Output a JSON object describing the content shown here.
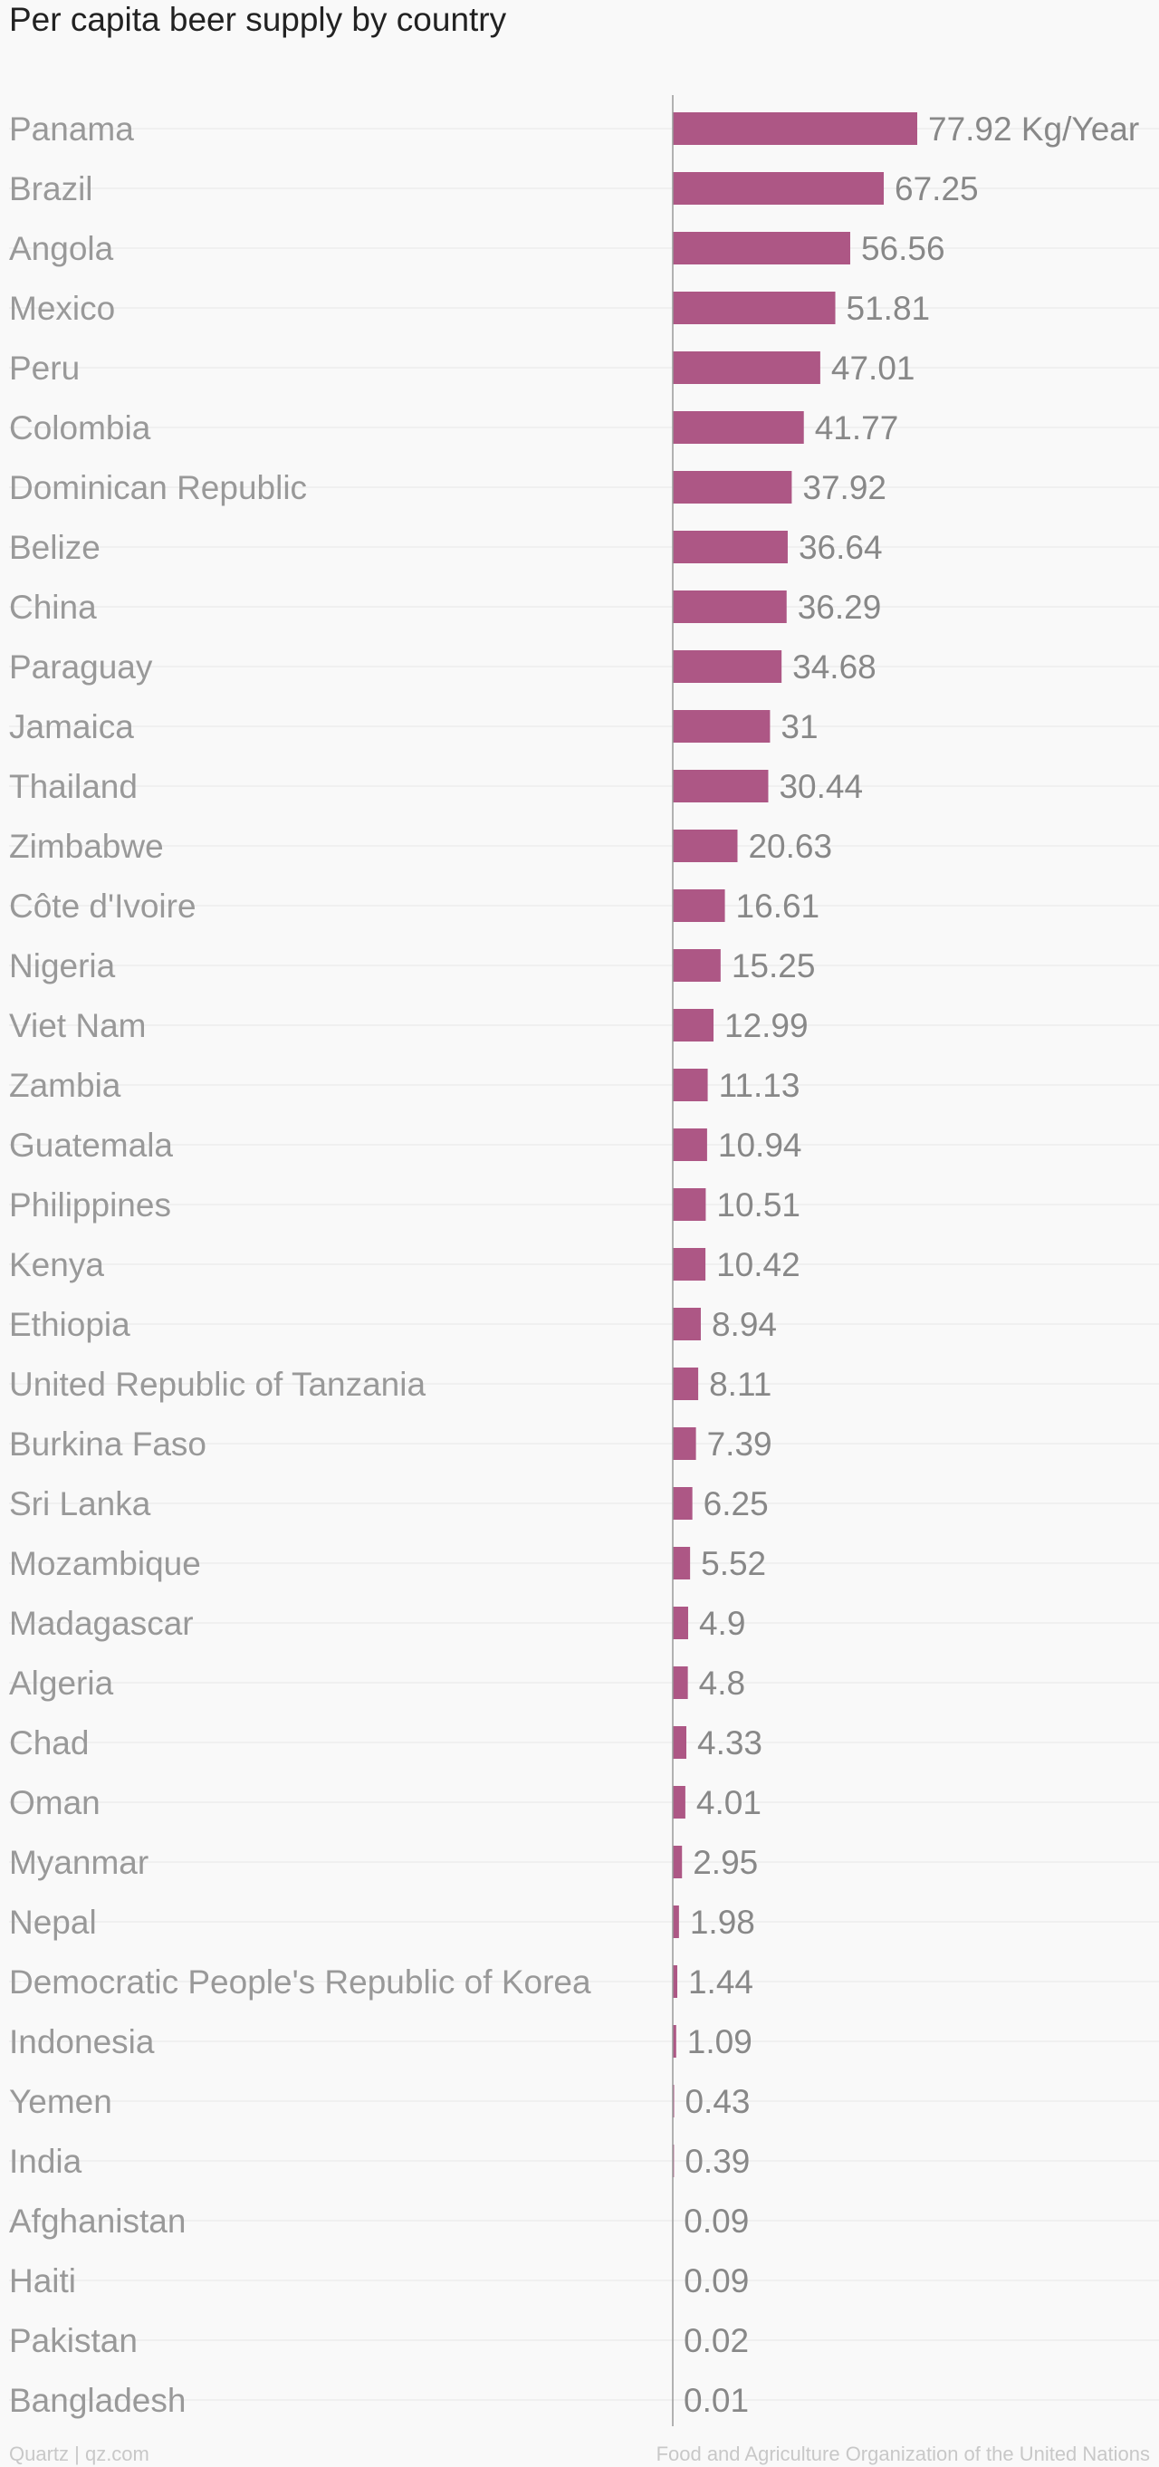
{
  "title": "Per capita beer supply by country",
  "footer": {
    "credit": "Quartz | qz.com",
    "source": "Food and Agriculture Organization of the United Nations"
  },
  "colors": {
    "bar": "#ad5785",
    "category_label": "#999999",
    "value_label": "#888888",
    "gridline": "#e6e6e6",
    "axis": "#999999",
    "background": "#f9f9f9"
  },
  "chart_data": {
    "type": "bar",
    "orientation": "horizontal",
    "categories": [
      "Panama",
      "Brazil",
      "Angola",
      "Mexico",
      "Peru",
      "Colombia",
      "Dominican Republic",
      "Belize",
      "China",
      "Paraguay",
      "Jamaica",
      "Thailand",
      "Zimbabwe",
      "Côte d'Ivoire",
      "Nigeria",
      "Viet Nam",
      "Zambia",
      "Guatemala",
      "Philippines",
      "Kenya",
      "Ethiopia",
      "United Republic of Tanzania",
      "Burkina Faso",
      "Sri Lanka",
      "Mozambique",
      "Madagascar",
      "Algeria",
      "Chad",
      "Oman",
      "Myanmar",
      "Nepal",
      "Democratic People's Republic of Korea",
      "Indonesia",
      "Yemen",
      "India",
      "Afghanistan",
      "Haiti",
      "Pakistan",
      "Bangladesh"
    ],
    "values": [
      77.92,
      67.25,
      56.56,
      51.81,
      47.01,
      41.77,
      37.92,
      36.64,
      36.29,
      34.68,
      31,
      30.44,
      20.63,
      16.61,
      15.25,
      12.99,
      11.13,
      10.94,
      10.51,
      10.42,
      8.94,
      8.11,
      7.39,
      6.25,
      5.52,
      4.9,
      4.8,
      4.33,
      4.01,
      2.95,
      1.98,
      1.44,
      1.09,
      0.43,
      0.39,
      0.09,
      0.09,
      0.02,
      0.01
    ],
    "value_labels": [
      "77.92 Kg/Year",
      "67.25",
      "56.56",
      "51.81",
      "47.01",
      "41.77",
      "37.92",
      "36.64",
      "36.29",
      "34.68",
      "31",
      "30.44",
      "20.63",
      "16.61",
      "15.25",
      "12.99",
      "11.13",
      "10.94",
      "10.51",
      "10.42",
      "8.94",
      "8.11",
      "7.39",
      "6.25",
      "5.52",
      "4.9",
      "4.8",
      "4.33",
      "4.01",
      "2.95",
      "1.98",
      "1.44",
      "1.09",
      "0.43",
      "0.39",
      "0.09",
      "0.09",
      "0.02",
      "0.01"
    ],
    "unit": "Kg/Year",
    "title": "Per capita beer supply by country",
    "xlabel": "",
    "ylabel": "",
    "xlim": [
      0,
      77.92
    ],
    "grid": true,
    "legend": "none"
  }
}
